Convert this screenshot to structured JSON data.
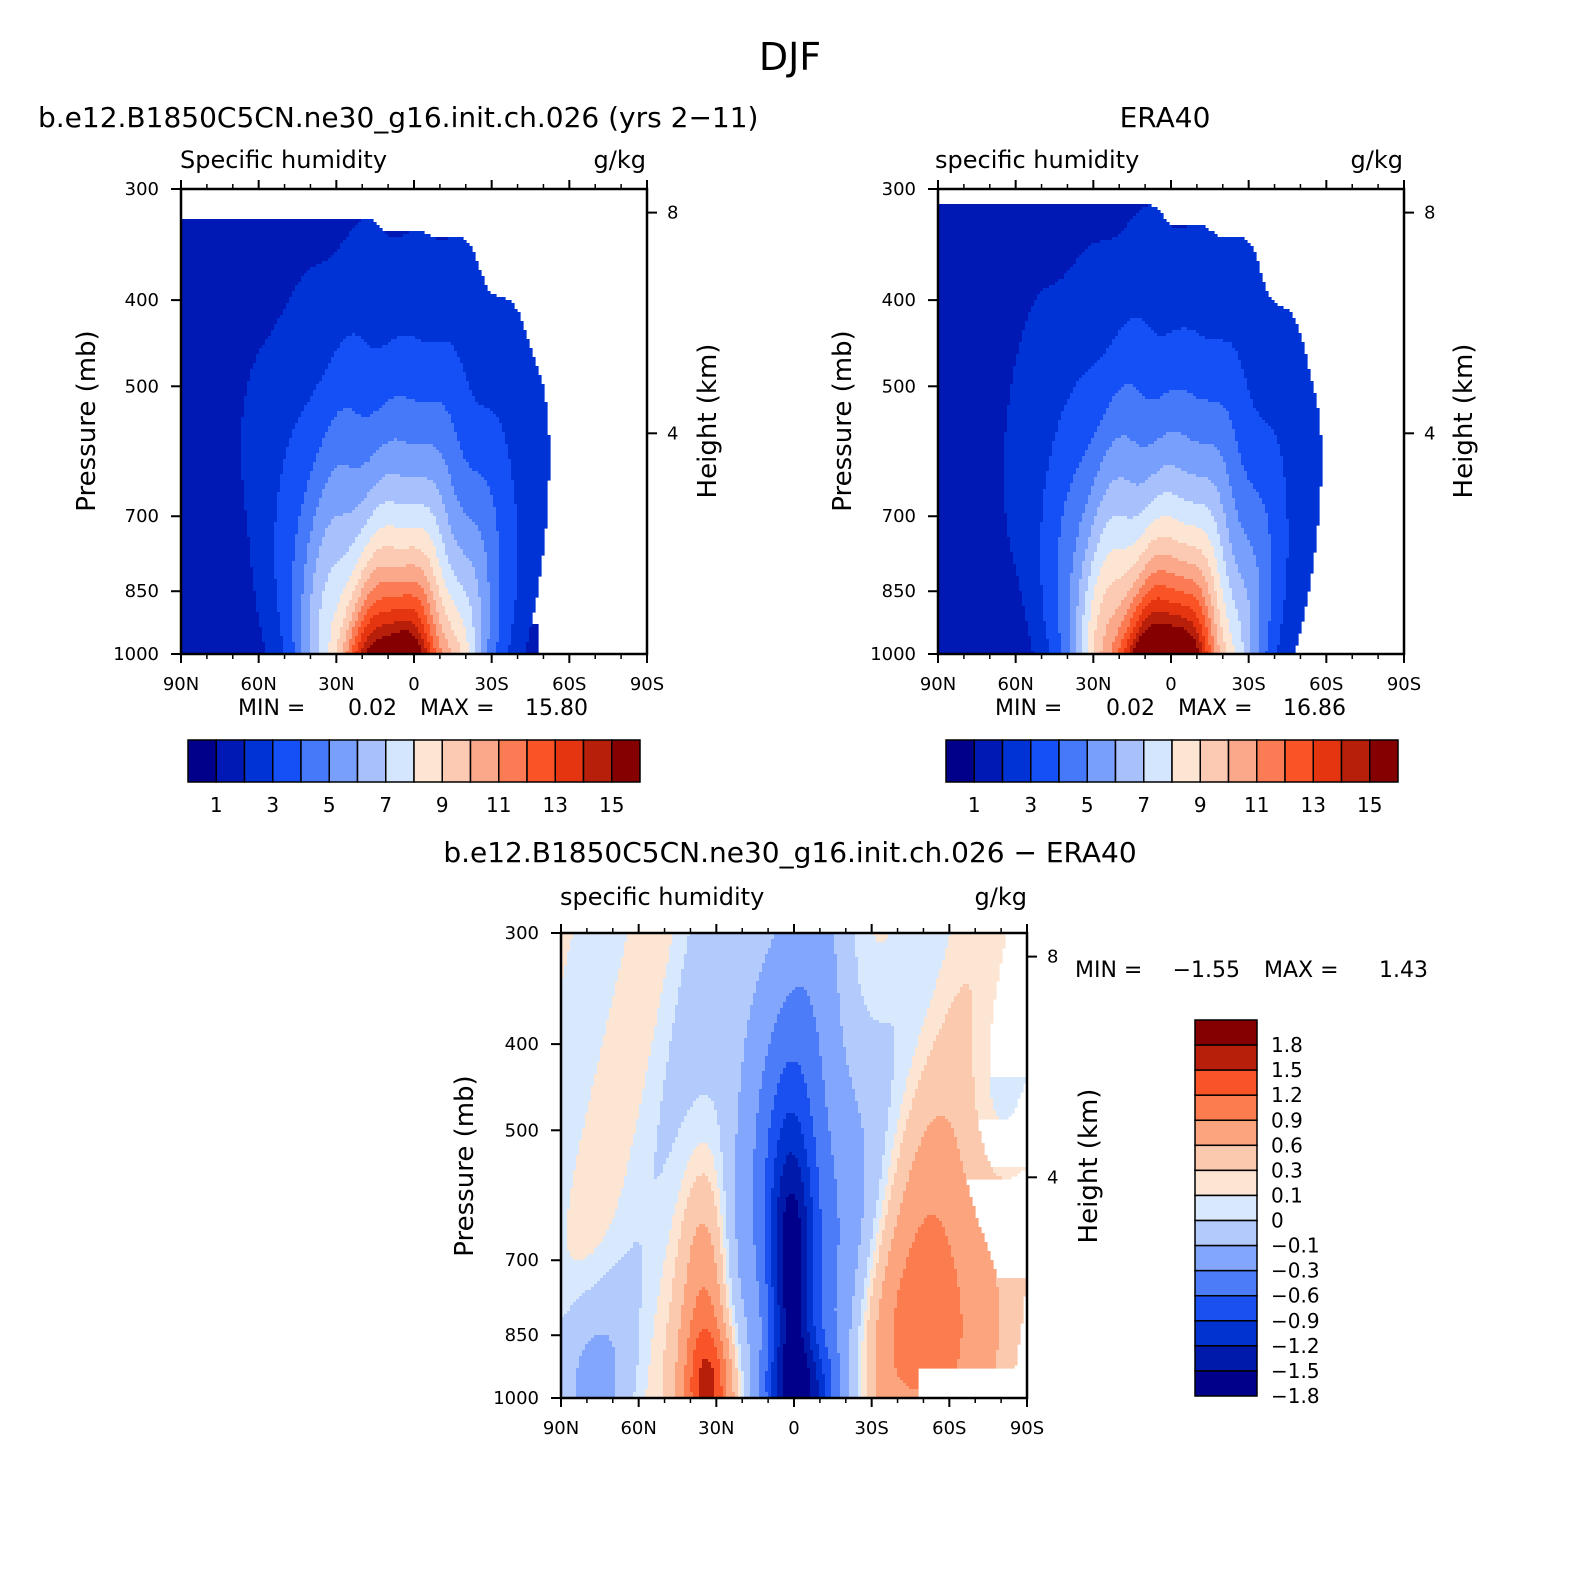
{
  "figure": {
    "title": "DJF"
  },
  "colors": {
    "humidity_palette": [
      "#00008b",
      "#0019b4",
      "#0033d6",
      "#1450f5",
      "#4678fa",
      "#789ffb",
      "#a8c1fc",
      "#d4e6fd",
      "#fde5d4",
      "#fccab2",
      "#fba88a",
      "#fa7b54",
      "#f95326",
      "#e53410",
      "#b81f0a",
      "#850000"
    ],
    "diff_palette": [
      "#00008b",
      "#001aac",
      "#0033cf",
      "#1a4ff0",
      "#4d7cf8",
      "#82a6fb",
      "#b3cafc",
      "#d8e8fd",
      "#fde5d4",
      "#fbc9ad",
      "#fba47e",
      "#fa7c4f",
      "#f95328",
      "#b81f0a",
      "#850000"
    ],
    "missing": "#ffffff"
  },
  "chart_data": [
    {
      "type": "heatmap",
      "panel_title": "b.e12.B1850C5CN.ne30_g16.init.ch.026 (yrs 2−11)",
      "left_title": "Specific humidity",
      "right_title": "g/kg",
      "ylabel": "Pressure (mb)",
      "y2label": "Height (km)",
      "x_ticks": [
        "90N",
        "60N",
        "30N",
        "0",
        "30S",
        "60S",
        "90S"
      ],
      "y_ticks": [
        "300",
        "400",
        "500",
        "700",
        "850",
        "1000"
      ],
      "y2_ticks": [
        "8",
        "4"
      ],
      "xlim": [
        90,
        -90
      ],
      "ylim": [
        1000,
        300
      ],
      "y_scale": "log",
      "stats": {
        "min_label": "MIN =",
        "min": "0.02",
        "max_label": "MAX =",
        "max": "15.80"
      },
      "colorbar": {
        "orientation": "horizontal",
        "levels": [
          0,
          1,
          2,
          3,
          4,
          5,
          6,
          7,
          8,
          9,
          10,
          11,
          12,
          13,
          14,
          15
        ],
        "tick_labels": [
          "1",
          "3",
          "5",
          "7",
          "9",
          "11",
          "13",
          "15"
        ]
      },
      "field": {
        "peak_lat": 7,
        "surface_max": 15.8,
        "missing": [
          {
            "lat": [
              -48,
              -90
            ],
            "p": [
              1000,
              925
            ]
          }
        ]
      }
    },
    {
      "type": "heatmap",
      "panel_title": "ERA40",
      "left_title": "specific humidity",
      "right_title": "g/kg",
      "ylabel": "Pressure (mb)",
      "y2label": "Height (km)",
      "x_ticks": [
        "90N",
        "60N",
        "30N",
        "0",
        "30S",
        "60S",
        "90S"
      ],
      "y_ticks": [
        "300",
        "400",
        "500",
        "700",
        "850",
        "1000"
      ],
      "y2_ticks": [
        "8",
        "4"
      ],
      "xlim": [
        90,
        -90
      ],
      "ylim": [
        1000,
        300
      ],
      "y_scale": "log",
      "stats": {
        "min_label": "MIN =",
        "min": "0.02",
        "max_label": "MAX =",
        "max": "16.86"
      },
      "colorbar": {
        "orientation": "horizontal",
        "levels": [
          0,
          1,
          2,
          3,
          4,
          5,
          6,
          7,
          8,
          9,
          10,
          11,
          12,
          13,
          14,
          15
        ],
        "tick_labels": [
          "1",
          "3",
          "5",
          "7",
          "9",
          "11",
          "13",
          "15"
        ]
      },
      "field": {
        "peak_lat": 3,
        "surface_max": 16.86,
        "missing": []
      }
    },
    {
      "type": "heatmap",
      "panel_title": "b.e12.B1850C5CN.ne30_g16.init.ch.026 − ERA40",
      "left_title": "specific humidity",
      "right_title": "g/kg",
      "ylabel": "Pressure (mb)",
      "y2label": "Height (km)",
      "x_ticks": [
        "90N",
        "60N",
        "30N",
        "0",
        "30S",
        "60S",
        "90S"
      ],
      "y_ticks": [
        "300",
        "400",
        "500",
        "700",
        "850",
        "1000"
      ],
      "y2_ticks": [
        "8",
        "4"
      ],
      "xlim": [
        90,
        -90
      ],
      "ylim": [
        1000,
        300
      ],
      "y_scale": "log",
      "stats": {
        "min_label": "MIN =",
        "min": "−1.55",
        "max_label": "MAX =",
        "max": "1.43"
      },
      "colorbar": {
        "orientation": "vertical",
        "levels": [
          -1.8,
          -1.5,
          -1.2,
          -0.9,
          -0.6,
          -0.3,
          -0.1,
          0,
          0.1,
          0.3,
          0.6,
          0.9,
          1.2,
          1.5,
          1.8
        ],
        "tick_labels": [
          "1.8",
          "1.5",
          "1.2",
          "0.9",
          "0.6",
          "0.3",
          "0.1",
          "0",
          "−0.1",
          "−0.3",
          "−0.6",
          "−0.9",
          "−1.2",
          "−1.5",
          "−1.8"
        ]
      },
      "field": {
        "missing": [
          {
            "lat": [
              -48,
              -90
            ],
            "p": [
              1000,
              925
            ]
          }
        ]
      }
    }
  ]
}
